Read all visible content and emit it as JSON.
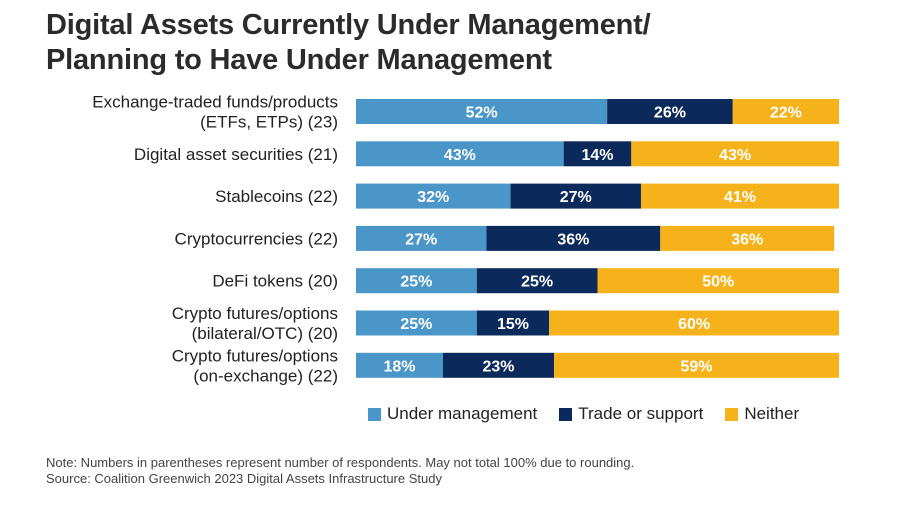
{
  "title_line1": "Digital Assets Currently Under Management/",
  "title_line2": "Planning to Have Under Management",
  "chart_data": {
    "type": "bar",
    "orientation": "horizontal",
    "stacked": true,
    "title": "Digital Assets Currently Under Management/ Planning to Have Under Management",
    "categories": [
      [
        "Exchange-traded funds/products",
        "(ETFs, ETPs) (23)"
      ],
      [
        "Digital asset securities (21)"
      ],
      [
        "Stablecoins (22)"
      ],
      [
        "Cryptocurrencies (22)"
      ],
      [
        "DeFi tokens (20)"
      ],
      [
        "Crypto futures/options",
        "(bilateral/OTC) (20)"
      ],
      [
        "Crypto futures/options",
        "(on-exchange) (22)"
      ]
    ],
    "series": [
      {
        "name": "Under management",
        "color": "#4a96c9",
        "values": [
          52,
          43,
          32,
          27,
          25,
          25,
          18
        ]
      },
      {
        "name": "Trade or support",
        "color": "#0b2a5b",
        "values": [
          26,
          14,
          27,
          36,
          25,
          15,
          23
        ]
      },
      {
        "name": "Neither",
        "color": "#f6b21b",
        "values": [
          22,
          43,
          41,
          36,
          50,
          60,
          59
        ]
      }
    ],
    "value_suffix": "%",
    "xlim": [
      0,
      100
    ]
  },
  "legend": {
    "items": [
      {
        "label": "Under management",
        "color": "#4a96c9"
      },
      {
        "label": "Trade or support",
        "color": "#0b2a5b"
      },
      {
        "label": "Neither",
        "color": "#f6b21b"
      }
    ]
  },
  "note": "Note: Numbers in parentheses represent number of respondents. May not total 100% due to rounding.",
  "source": "Source: Coalition Greenwich 2023 Digital Assets Infrastructure Study"
}
